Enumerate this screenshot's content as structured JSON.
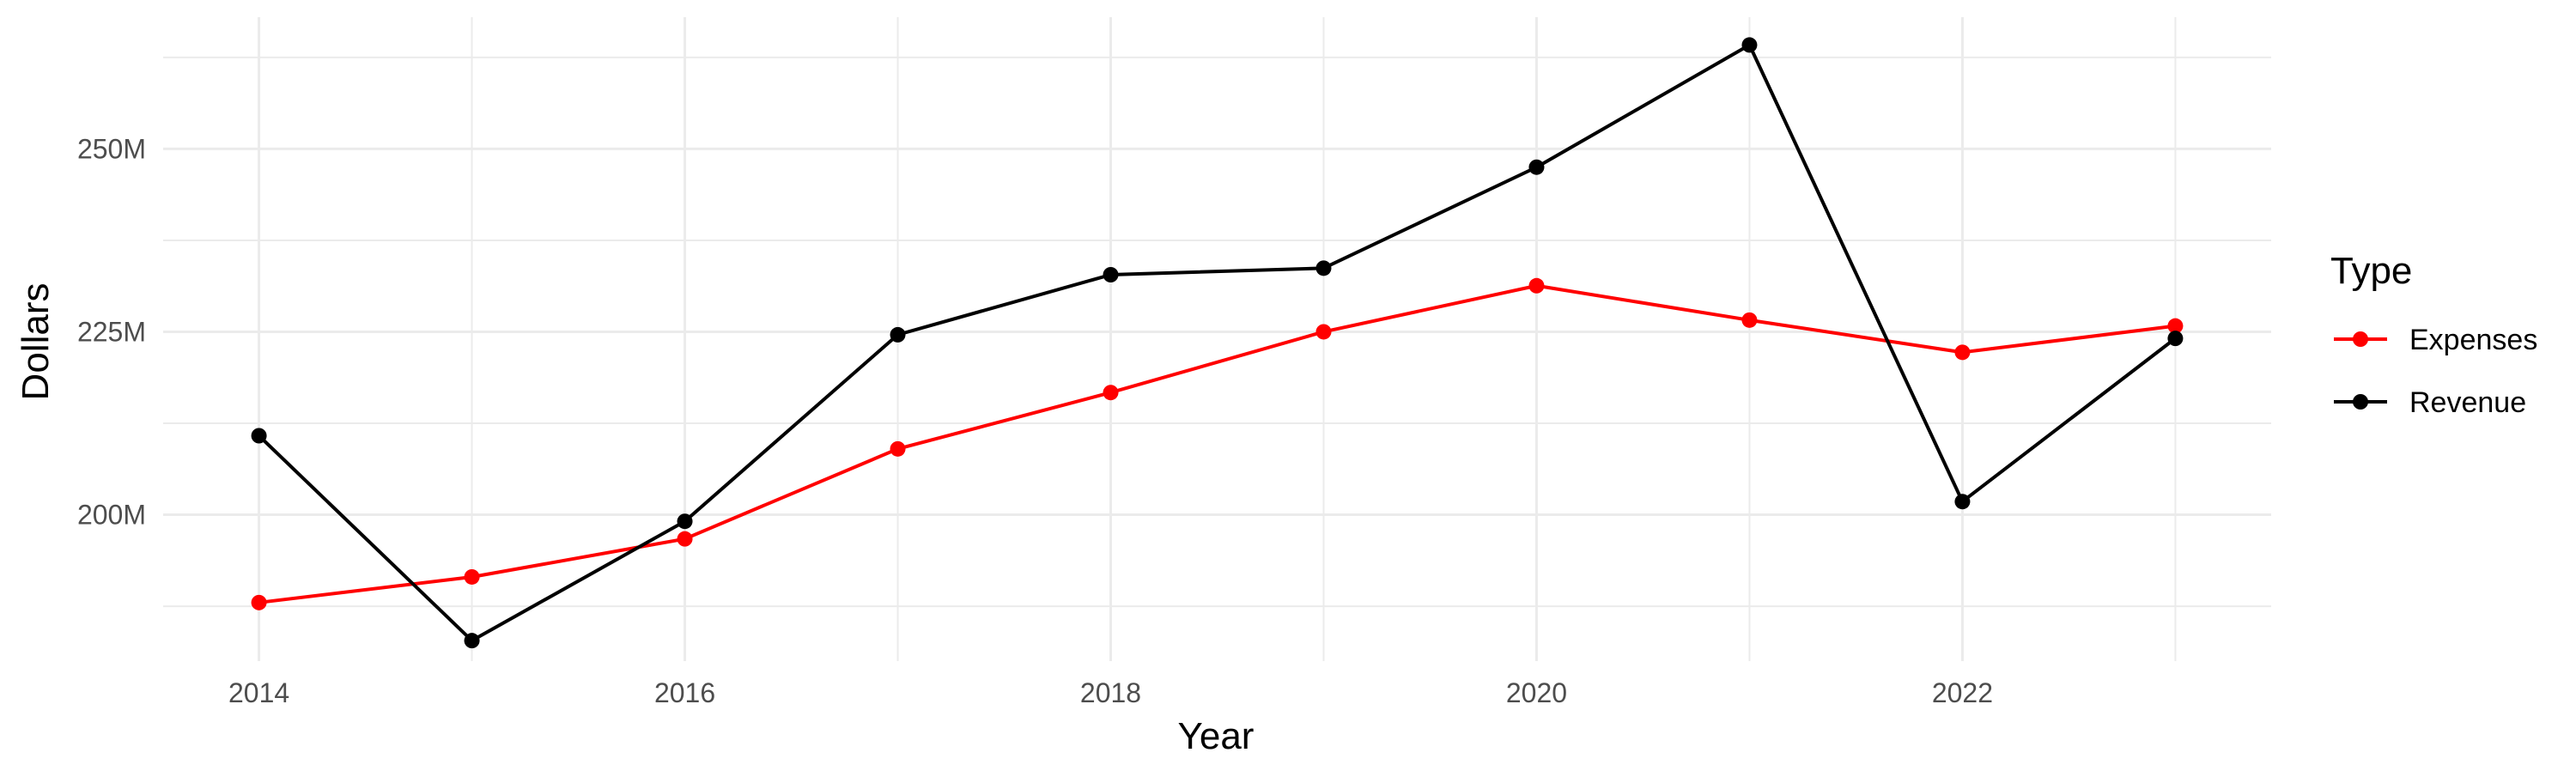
{
  "chart_data": {
    "type": "line",
    "title": "",
    "xlabel": "Year",
    "ylabel": "Dollars",
    "x": [
      2014,
      2015,
      2016,
      2017,
      2018,
      2019,
      2020,
      2021,
      2022,
      2023
    ],
    "x_ticks": [
      2014,
      2016,
      2018,
      2020,
      2022
    ],
    "x_tick_labels": [
      "2014",
      "2016",
      "2018",
      "2020",
      "2022"
    ],
    "xlim": [
      2013.55,
      2023.45
    ],
    "y_ticks": [
      200000000,
      225000000,
      250000000
    ],
    "y_tick_labels": [
      "200M",
      "225M",
      "250M"
    ],
    "ylim": [
      180000000,
      268000000
    ],
    "grid": true,
    "legend": {
      "title": "Type",
      "position": "right"
    },
    "series": [
      {
        "name": "Expenses",
        "color": "#ff0000",
        "values": [
          188000000,
          191500000,
          196700000,
          209000000,
          216700000,
          225000000,
          231300000,
          226600000,
          222200000,
          225800000
        ]
      },
      {
        "name": "Revenue",
        "color": "#000000",
        "values": [
          210800000,
          182800000,
          199100000,
          224600000,
          232800000,
          233700000,
          247500000,
          264200000,
          201800000,
          224100000
        ]
      }
    ]
  }
}
